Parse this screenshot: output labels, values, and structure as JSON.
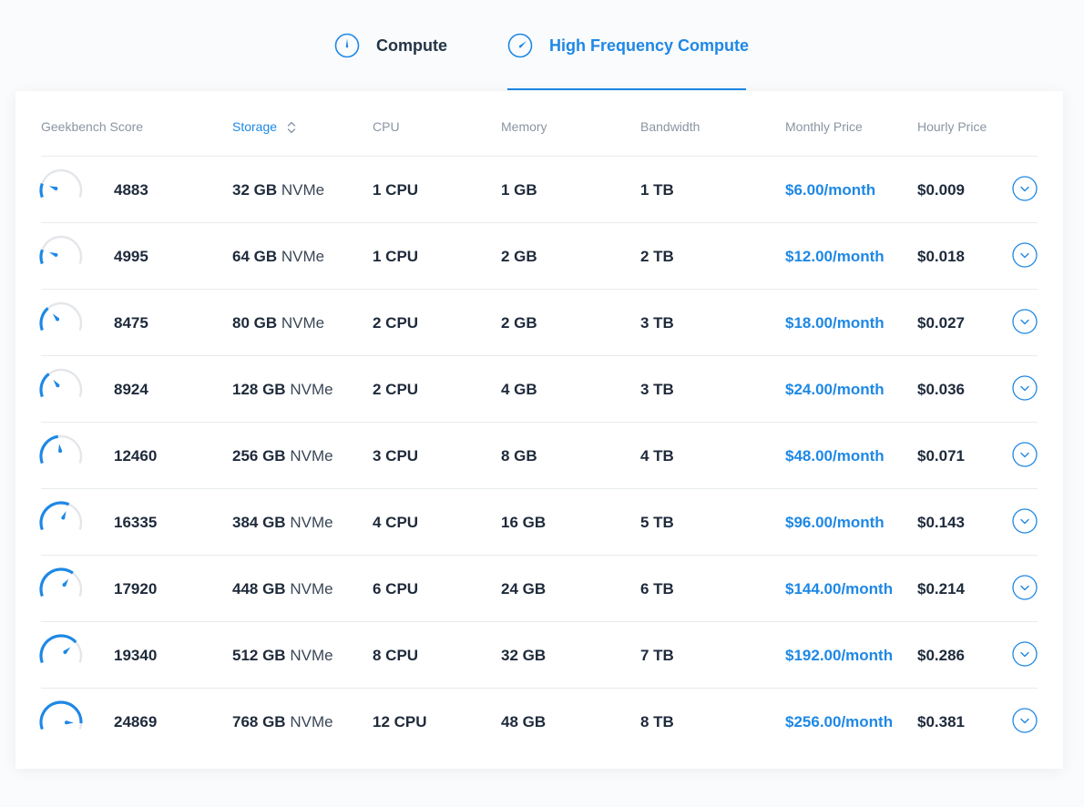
{
  "tabs": [
    {
      "label": "Compute",
      "icon": "speedometer-icon",
      "active": false
    },
    {
      "label": "High Frequency Compute",
      "icon": "speedometer-fast-icon",
      "active": true
    }
  ],
  "colors": {
    "accent": "#1e88e5",
    "text": "#1e2a3b",
    "muted": "#8a95a3",
    "gauge_track": "#e3e6ea"
  },
  "table": {
    "headers": {
      "score": "Geekbench Score",
      "storage": "Storage",
      "cpu": "CPU",
      "memory": "Memory",
      "bandwidth": "Bandwidth",
      "monthly": "Monthly Price",
      "hourly": "Hourly Price"
    },
    "sorted_by": "storage",
    "gauge_scale_max": 27000,
    "rows": [
      {
        "score": "4883",
        "storage_size": "32 GB",
        "storage_type": "NVMe",
        "cpu": "1 CPU",
        "memory": "1 GB",
        "bandwidth": "1 TB",
        "monthly": "$6.00/month",
        "hourly": "$0.009"
      },
      {
        "score": "4995",
        "storage_size": "64 GB",
        "storage_type": "NVMe",
        "cpu": "1 CPU",
        "memory": "2 GB",
        "bandwidth": "2 TB",
        "monthly": "$12.00/month",
        "hourly": "$0.018"
      },
      {
        "score": "8475",
        "storage_size": "80 GB",
        "storage_type": "NVMe",
        "cpu": "2 CPU",
        "memory": "2 GB",
        "bandwidth": "3 TB",
        "monthly": "$18.00/month",
        "hourly": "$0.027"
      },
      {
        "score": "8924",
        "storage_size": "128 GB",
        "storage_type": "NVMe",
        "cpu": "2 CPU",
        "memory": "4 GB",
        "bandwidth": "3 TB",
        "monthly": "$24.00/month",
        "hourly": "$0.036"
      },
      {
        "score": "12460",
        "storage_size": "256 GB",
        "storage_type": "NVMe",
        "cpu": "3 CPU",
        "memory": "8 GB",
        "bandwidth": "4 TB",
        "monthly": "$48.00/month",
        "hourly": "$0.071"
      },
      {
        "score": "16335",
        "storage_size": "384 GB",
        "storage_type": "NVMe",
        "cpu": "4 CPU",
        "memory": "16 GB",
        "bandwidth": "5 TB",
        "monthly": "$96.00/month",
        "hourly": "$0.143"
      },
      {
        "score": "17920",
        "storage_size": "448 GB",
        "storage_type": "NVMe",
        "cpu": "6 CPU",
        "memory": "24 GB",
        "bandwidth": "6 TB",
        "monthly": "$144.00/month",
        "hourly": "$0.214"
      },
      {
        "score": "19340",
        "storage_size": "512 GB",
        "storage_type": "NVMe",
        "cpu": "8 CPU",
        "memory": "32 GB",
        "bandwidth": "7 TB",
        "monthly": "$192.00/month",
        "hourly": "$0.286"
      },
      {
        "score": "24869",
        "storage_size": "768 GB",
        "storage_type": "NVMe",
        "cpu": "12 CPU",
        "memory": "48 GB",
        "bandwidth": "8 TB",
        "monthly": "$256.00/month",
        "hourly": "$0.381"
      }
    ]
  }
}
